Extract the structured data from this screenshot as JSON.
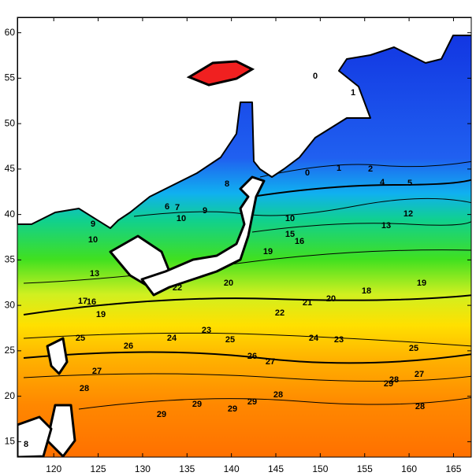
{
  "map": {
    "xlim": [
      115.9,
      167
    ],
    "ylim": [
      13.3,
      61.7
    ],
    "xticks": [
      120,
      125,
      130,
      135,
      140,
      145,
      150,
      155,
      160,
      165
    ],
    "yticks": [
      15,
      20,
      25,
      30,
      35,
      40,
      45,
      50,
      55,
      60
    ],
    "contour_labels": [
      "0",
      "1",
      "0",
      "1",
      "2",
      "4",
      "5",
      "8",
      "6",
      "7",
      "10",
      "10",
      "9",
      "13",
      "12",
      "15",
      "16",
      "19",
      "9",
      "10",
      "13",
      "17",
      "16",
      "19",
      "20",
      "22",
      "21",
      "20",
      "18",
      "19",
      "22",
      "23",
      "25",
      "24",
      "24",
      "23",
      "25",
      "26",
      "27",
      "26",
      "25",
      "27",
      "28",
      "29",
      "29",
      "29",
      "29",
      "28",
      "28",
      "27",
      "28",
      "29",
      "8"
    ]
  }
}
